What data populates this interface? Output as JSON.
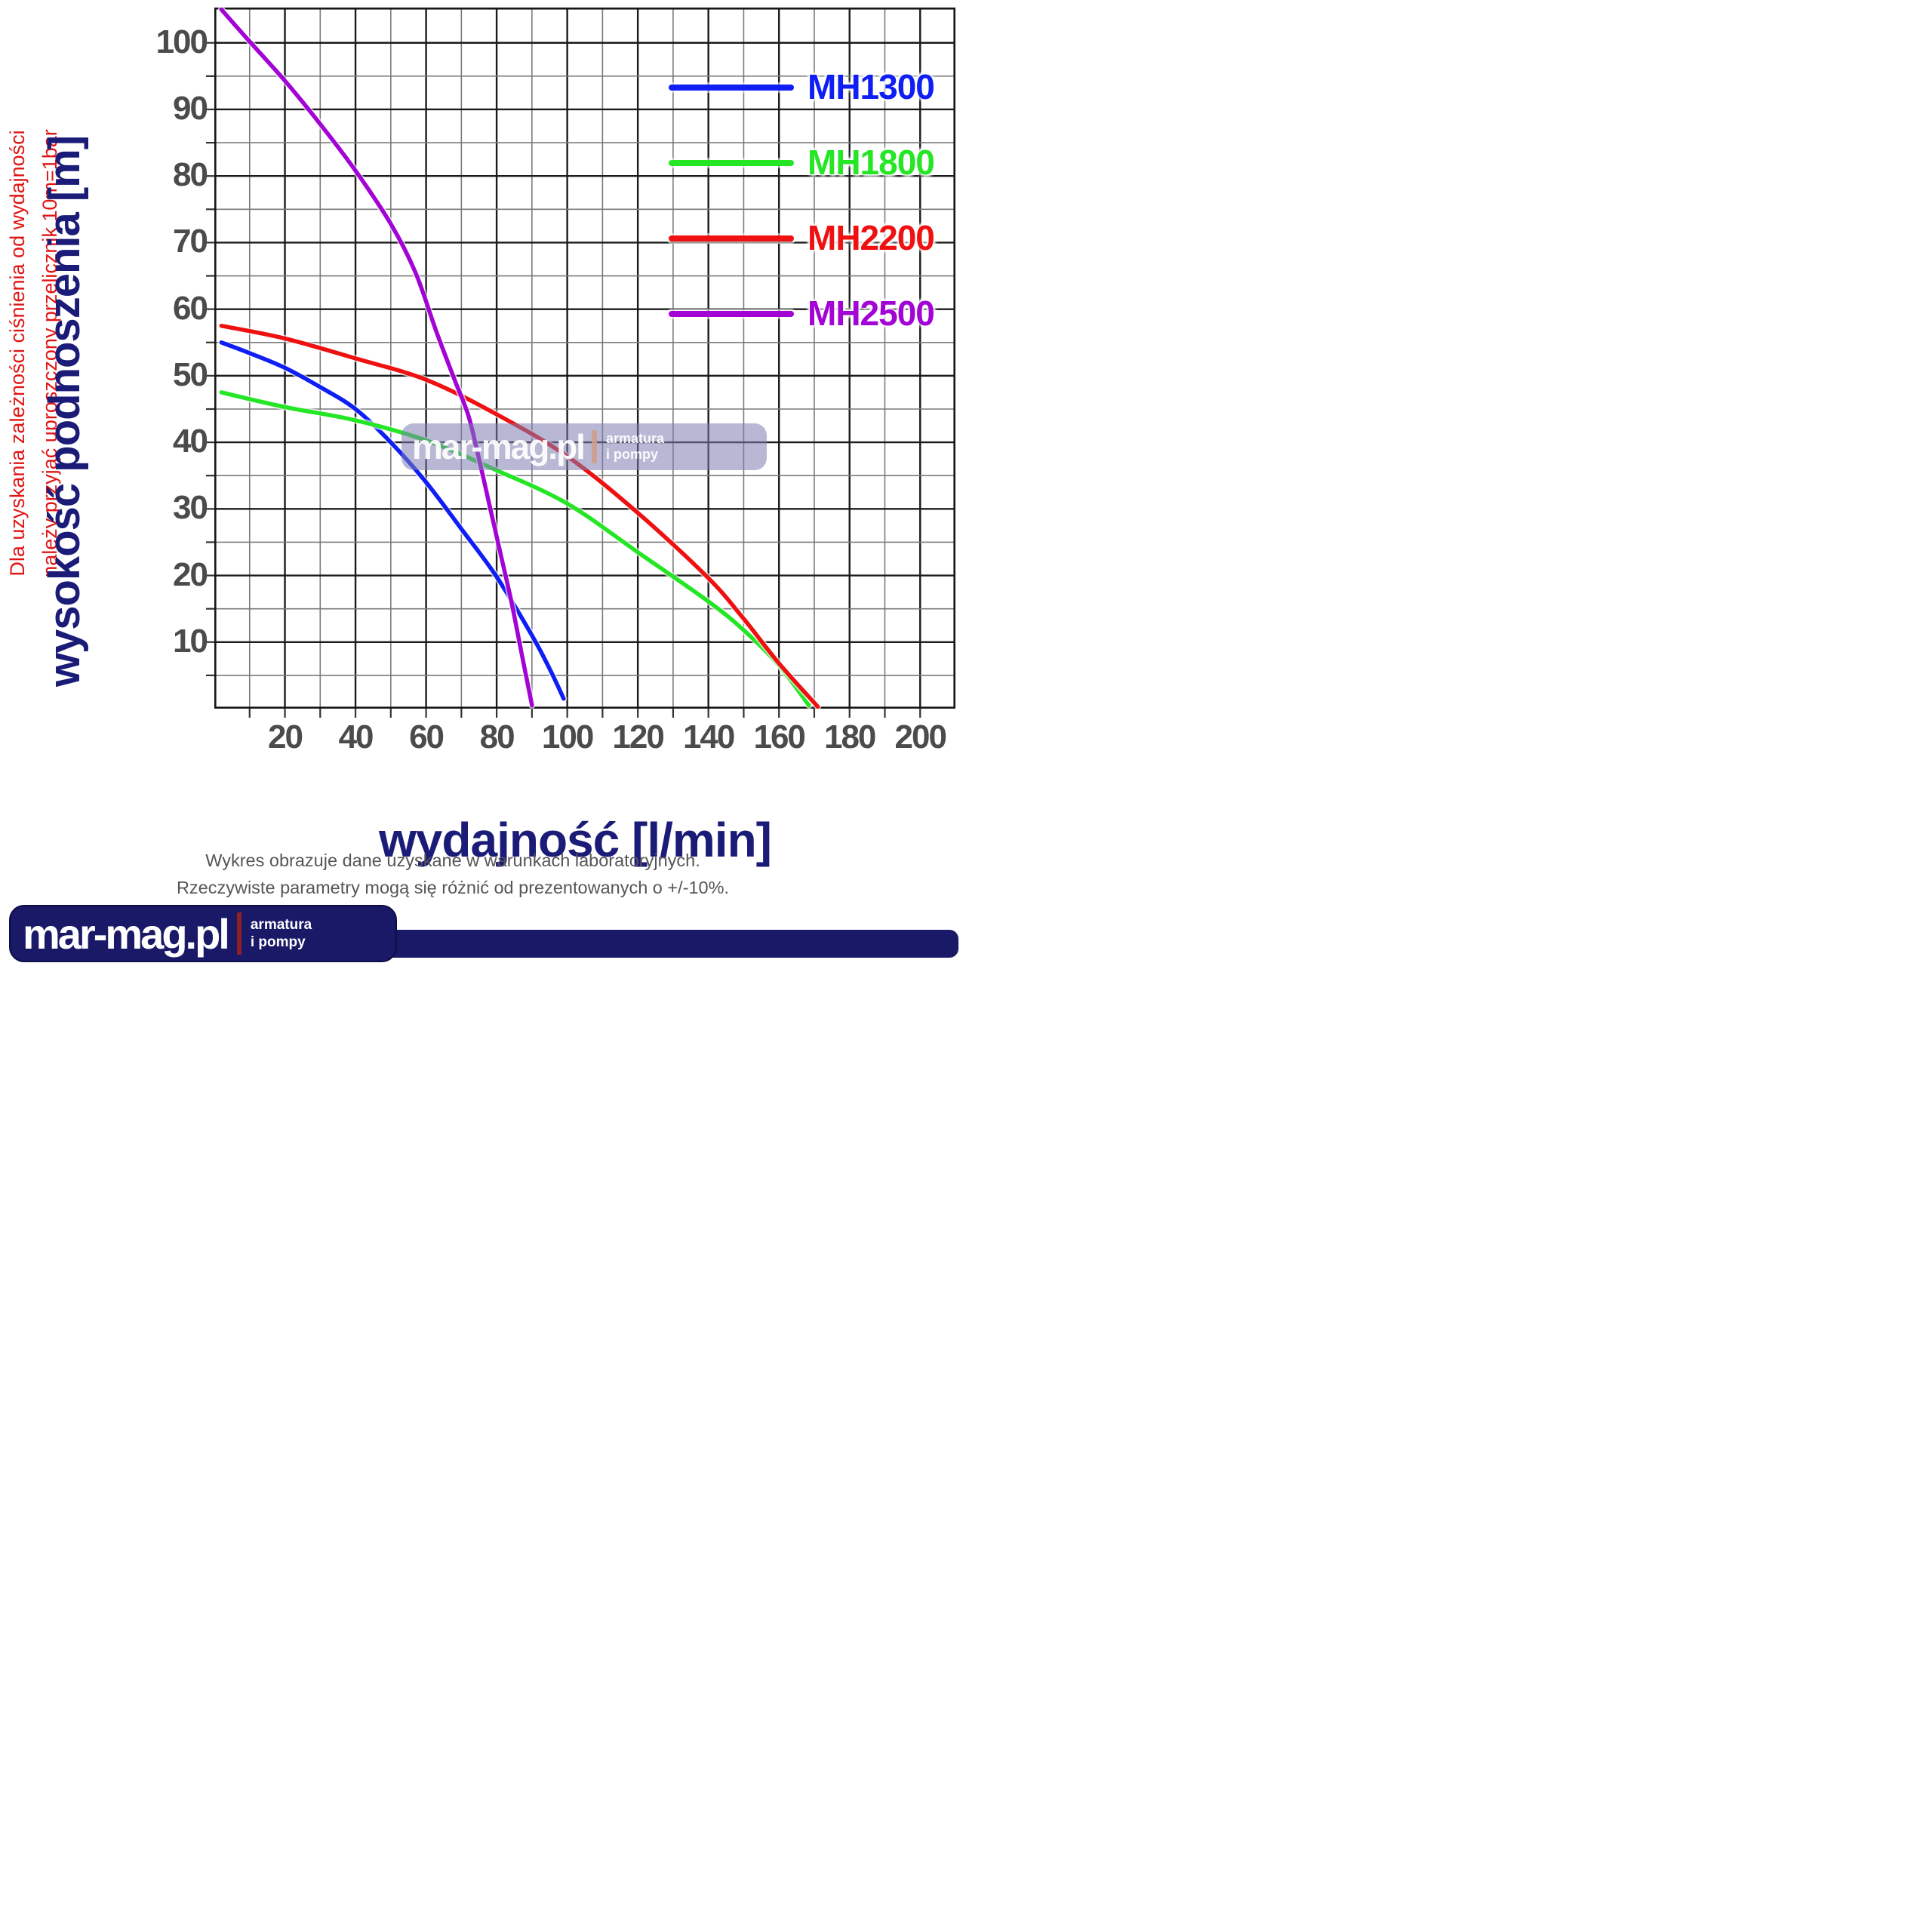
{
  "annotation_left": {
    "line1": "Dla uzyskania zależności ciśnienia od wydajności",
    "line2": "należy przyjąć uproszczony przelicznik 10m=1bar",
    "color": "#e01515"
  },
  "chart_data": {
    "type": "line",
    "title": "",
    "xlabel": "wydajność [l/min]",
    "ylabel": "wysokość podnoszenia [m]",
    "xlim": [
      0,
      210
    ],
    "ylim": [
      0,
      105.3
    ],
    "grid": "on",
    "x_major_ticks": [
      20,
      40,
      60,
      80,
      100,
      120,
      140,
      160,
      180,
      200
    ],
    "x_minor_step": 10,
    "y_major_ticks": [
      10,
      20,
      30,
      40,
      50,
      60,
      70,
      80,
      90,
      100
    ],
    "y_minor_step": 5,
    "legend_position": "top-right",
    "axis_label_color": "#4b4b4b",
    "grid_major_color": "#1b1b1b",
    "grid_minor_color": "#7a7a7a",
    "series": [
      {
        "name": "MH1300",
        "color": "#0f1ef5",
        "points": [
          [
            2,
            55
          ],
          [
            10,
            53.4
          ],
          [
            20,
            51.2
          ],
          [
            30,
            48.3
          ],
          [
            40,
            45
          ],
          [
            50,
            40
          ],
          [
            60,
            34
          ],
          [
            70,
            27
          ],
          [
            80,
            19.8
          ],
          [
            90,
            11
          ],
          [
            95,
            6
          ],
          [
            99,
            1.5
          ]
        ]
      },
      {
        "name": "MH1800",
        "color": "#25e625",
        "points": [
          [
            2,
            47.5
          ],
          [
            20,
            45.3
          ],
          [
            40,
            43.3
          ],
          [
            60,
            40.3
          ],
          [
            80,
            35.8
          ],
          [
            100,
            30.8
          ],
          [
            120,
            23.5
          ],
          [
            140,
            16.1
          ],
          [
            150,
            11.8
          ],
          [
            160,
            6.5
          ],
          [
            168.5,
            0.5
          ]
        ]
      },
      {
        "name": "MH2200",
        "color": "#ef1111",
        "points": [
          [
            2,
            57.5
          ],
          [
            20,
            55.6
          ],
          [
            40,
            52.6
          ],
          [
            60,
            49.4
          ],
          [
            80,
            44.2
          ],
          [
            100,
            37.9
          ],
          [
            120,
            29.4
          ],
          [
            140,
            19.6
          ],
          [
            150,
            13.5
          ],
          [
            160,
            6.8
          ],
          [
            171,
            0.3
          ]
        ]
      },
      {
        "name": "MH2500",
        "color": "#a304d6",
        "points": [
          [
            2,
            105
          ],
          [
            10,
            100.2
          ],
          [
            20,
            94.3
          ],
          [
            30,
            87.8
          ],
          [
            40,
            80.8
          ],
          [
            50,
            72.8
          ],
          [
            57,
            65.5
          ],
          [
            63,
            56.5
          ],
          [
            68,
            49.5
          ],
          [
            72,
            44
          ],
          [
            75,
            37.5
          ],
          [
            78,
            30.5
          ],
          [
            81,
            23.5
          ],
          [
            84,
            16.5
          ],
          [
            87,
            8.5
          ],
          [
            90,
            0.5
          ]
        ]
      }
    ]
  },
  "watermark": {
    "brand": "mar-mag.pl",
    "divider": "|",
    "tag_line1": "armatura",
    "tag_line2": "i pompy"
  },
  "footnote": {
    "line1": "Wykres obrazuje dane uzyskane w warunkach laboratoryjnych.",
    "line2": "Rzeczywiste parametry mogą się różnić od prezentowanych o +/-10%."
  },
  "logo": {
    "brand": "mar-mag.pl",
    "tag_line1": "armatura",
    "tag_line2": "i pompy"
  }
}
